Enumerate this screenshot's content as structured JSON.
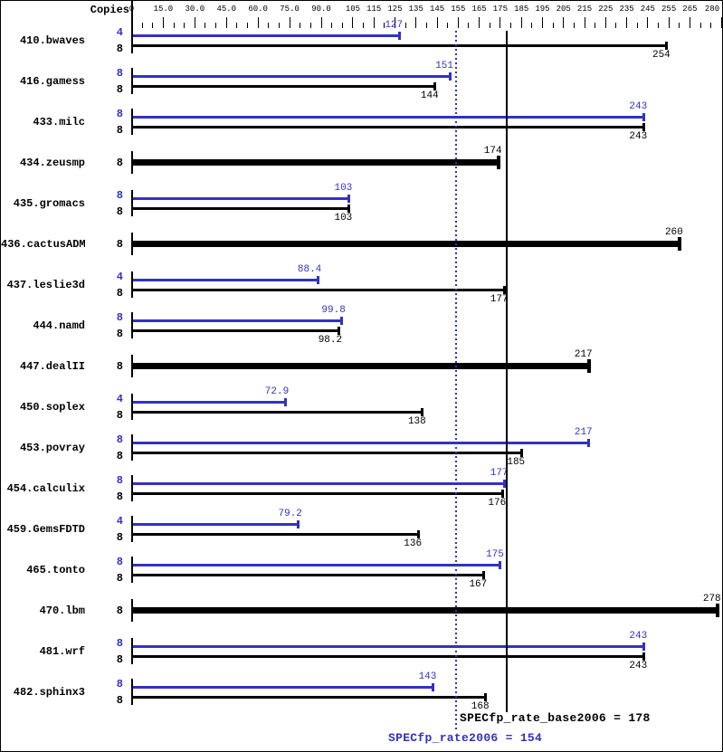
{
  "chart_data": {
    "type": "bar",
    "orientation": "horizontal",
    "copies_column_label": "Copies",
    "x_axis": {
      "range": [
        0,
        281
      ],
      "minor_tick_step": 5,
      "major_ticks": [
        {
          "value": 0,
          "label": "0"
        },
        {
          "value": 15,
          "label": "15.0"
        },
        {
          "value": 30,
          "label": "30.0"
        },
        {
          "value": 45,
          "label": "45.0"
        },
        {
          "value": 60,
          "label": "60.0"
        },
        {
          "value": 75,
          "label": "75.0"
        },
        {
          "value": 90,
          "label": "90.0"
        },
        {
          "value": 105,
          "label": "105"
        },
        {
          "value": 115,
          "label": "115"
        },
        {
          "value": 125,
          "label": "125"
        },
        {
          "value": 135,
          "label": "135"
        },
        {
          "value": 145,
          "label": "145"
        },
        {
          "value": 155,
          "label": "155"
        },
        {
          "value": 165,
          "label": "165"
        },
        {
          "value": 175,
          "label": "175"
        },
        {
          "value": 185,
          "label": "185"
        },
        {
          "value": 195,
          "label": "195"
        },
        {
          "value": 205,
          "label": "205"
        },
        {
          "value": 215,
          "label": "215"
        },
        {
          "value": 225,
          "label": "225"
        },
        {
          "value": 235,
          "label": "235"
        },
        {
          "value": 245,
          "label": "245"
        },
        {
          "value": 255,
          "label": "255"
        },
        {
          "value": 265,
          "label": "265"
        },
        {
          "value": 280,
          "label": "280"
        }
      ]
    },
    "series_legend": [
      {
        "id": "peak",
        "color": "#3232c0"
      },
      {
        "id": "base",
        "color": "#000000"
      }
    ],
    "benchmarks": [
      {
        "name": "410.bwaves",
        "bars": [
          {
            "series": "peak",
            "copies": "4",
            "value": 127,
            "label": "127"
          },
          {
            "series": "base",
            "copies": "8",
            "value": 254,
            "label": "254"
          }
        ]
      },
      {
        "name": "416.gamess",
        "bars": [
          {
            "series": "peak",
            "copies": "8",
            "value": 151,
            "label": "151"
          },
          {
            "series": "base",
            "copies": "8",
            "value": 144,
            "label": "144"
          }
        ]
      },
      {
        "name": "433.milc",
        "bars": [
          {
            "series": "peak",
            "copies": "8",
            "value": 243,
            "label": "243"
          },
          {
            "series": "base",
            "copies": "8",
            "value": 243,
            "label": "243"
          }
        ]
      },
      {
        "name": "434.zeusmp",
        "bars": [
          {
            "series": "single",
            "copies": "8",
            "value": 174,
            "label": "174"
          }
        ]
      },
      {
        "name": "435.gromacs",
        "bars": [
          {
            "series": "peak",
            "copies": "8",
            "value": 103,
            "label": "103"
          },
          {
            "series": "base",
            "copies": "8",
            "value": 103,
            "label": "103"
          }
        ]
      },
      {
        "name": "436.cactusADM",
        "bars": [
          {
            "series": "single",
            "copies": "8",
            "value": 260,
            "label": "260"
          }
        ]
      },
      {
        "name": "437.leslie3d",
        "bars": [
          {
            "series": "peak",
            "copies": "4",
            "value": 88.4,
            "label": "88.4"
          },
          {
            "series": "base",
            "copies": "8",
            "value": 177,
            "label": "177"
          }
        ]
      },
      {
        "name": "444.namd",
        "bars": [
          {
            "series": "peak",
            "copies": "8",
            "value": 99.8,
            "label": "99.8"
          },
          {
            "series": "base",
            "copies": "8",
            "value": 98.2,
            "label": "98.2"
          }
        ]
      },
      {
        "name": "447.dealII",
        "bars": [
          {
            "series": "single",
            "copies": "8",
            "value": 217,
            "label": "217"
          }
        ]
      },
      {
        "name": "450.soplex",
        "bars": [
          {
            "series": "peak",
            "copies": "4",
            "value": 72.9,
            "label": "72.9"
          },
          {
            "series": "base",
            "copies": "8",
            "value": 138,
            "label": "138"
          }
        ]
      },
      {
        "name": "453.povray",
        "bars": [
          {
            "series": "peak",
            "copies": "8",
            "value": 217,
            "label": "217"
          },
          {
            "series": "base",
            "copies": "8",
            "value": 185,
            "label": "185"
          }
        ]
      },
      {
        "name": "454.calculix",
        "bars": [
          {
            "series": "peak",
            "copies": "8",
            "value": 177,
            "label": "177"
          },
          {
            "series": "base",
            "copies": "8",
            "value": 176,
            "label": "176"
          }
        ]
      },
      {
        "name": "459.GemsFDTD",
        "bars": [
          {
            "series": "peak",
            "copies": "4",
            "value": 79.2,
            "label": "79.2"
          },
          {
            "series": "base",
            "copies": "8",
            "value": 136,
            "label": "136"
          }
        ]
      },
      {
        "name": "465.tonto",
        "bars": [
          {
            "series": "peak",
            "copies": "8",
            "value": 175,
            "label": "175"
          },
          {
            "series": "base",
            "copies": "8",
            "value": 167,
            "label": "167"
          }
        ]
      },
      {
        "name": "470.lbm",
        "bars": [
          {
            "series": "single",
            "copies": "8",
            "value": 278,
            "label": "278"
          }
        ]
      },
      {
        "name": "481.wrf",
        "bars": [
          {
            "series": "peak",
            "copies": "8",
            "value": 243,
            "label": "243"
          },
          {
            "series": "base",
            "copies": "8",
            "value": 243,
            "label": "243"
          }
        ]
      },
      {
        "name": "482.sphinx3",
        "bars": [
          {
            "series": "peak",
            "copies": "8",
            "value": 143,
            "label": "143"
          },
          {
            "series": "base",
            "copies": "8",
            "value": 168,
            "label": "168"
          }
        ]
      }
    ],
    "reference_lines": [
      {
        "id": "base",
        "label": "SPECfp_rate_base2006 = 178",
        "value": 178,
        "color": "#000000",
        "style": "solid"
      },
      {
        "id": "peak",
        "label": "SPECfp_rate2006 = 154",
        "value": 154,
        "color": "#3232c0",
        "style": "dotted"
      }
    ]
  }
}
